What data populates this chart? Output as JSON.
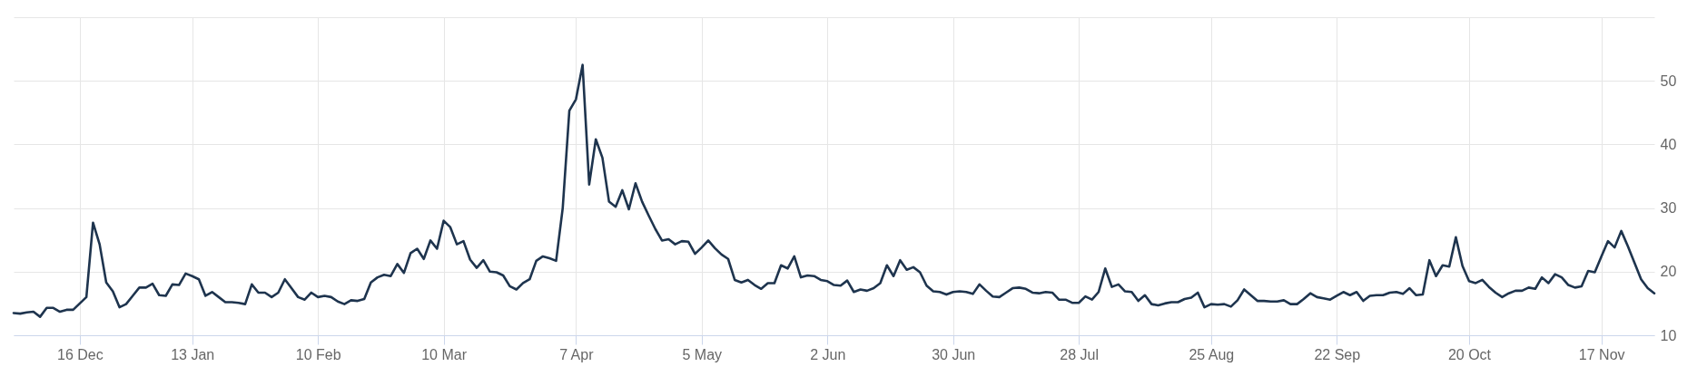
{
  "chart_data": {
    "type": "line",
    "color": "#1e344e",
    "grid": true,
    "ylim": [
      10,
      60
    ],
    "yticks": [
      10,
      20,
      30,
      40,
      50,
      {
        "value": 60,
        "label": null
      }
    ],
    "categories": [
      null,
      null,
      null,
      null,
      null,
      null,
      null,
      null,
      null,
      null,
      "16 Dec",
      null,
      null,
      null,
      null,
      null,
      null,
      null,
      null,
      null,
      null,
      null,
      null,
      null,
      null,
      null,
      null,
      "13 Jan",
      null,
      null,
      null,
      null,
      null,
      null,
      null,
      null,
      null,
      null,
      null,
      null,
      null,
      null,
      null,
      null,
      null,
      null,
      "10 Feb",
      null,
      null,
      null,
      null,
      null,
      null,
      null,
      null,
      null,
      null,
      null,
      null,
      null,
      null,
      null,
      null,
      null,
      null,
      "10 Mar",
      null,
      null,
      null,
      null,
      null,
      null,
      null,
      null,
      null,
      null,
      null,
      null,
      null,
      null,
      null,
      null,
      null,
      null,
      null,
      "7 Apr",
      null,
      null,
      null,
      null,
      null,
      null,
      null,
      null,
      null,
      null,
      null,
      null,
      null,
      null,
      null,
      null,
      null,
      null,
      "5 May",
      null,
      null,
      null,
      null,
      null,
      null,
      null,
      null,
      null,
      null,
      null,
      null,
      null,
      null,
      null,
      null,
      null,
      null,
      "2 Jun",
      null,
      null,
      null,
      null,
      null,
      null,
      null,
      null,
      null,
      null,
      null,
      null,
      null,
      null,
      null,
      null,
      null,
      null,
      "30 Jun",
      null,
      null,
      null,
      null,
      null,
      null,
      null,
      null,
      null,
      null,
      null,
      null,
      null,
      null,
      null,
      null,
      null,
      null,
      "28 Jul",
      null,
      null,
      null,
      null,
      null,
      null,
      null,
      null,
      null,
      null,
      null,
      null,
      null,
      null,
      null,
      null,
      null,
      null,
      null,
      "25 Aug",
      null,
      null,
      null,
      null,
      null,
      null,
      null,
      null,
      null,
      null,
      null,
      null,
      null,
      null,
      null,
      null,
      null,
      null,
      "22 Sep",
      null,
      null,
      null,
      null,
      null,
      null,
      null,
      null,
      null,
      null,
      null,
      null,
      null,
      null,
      null,
      null,
      null,
      null,
      null,
      "20 Oct",
      null,
      null,
      null,
      null,
      null,
      null,
      null,
      null,
      null,
      null,
      null,
      null,
      null,
      null,
      null,
      null,
      null,
      null,
      null,
      "17 Nov",
      null,
      null,
      null,
      null,
      null,
      null,
      null,
      null
    ],
    "values": [
      13.5,
      13.4,
      13.6,
      13.7,
      12.9,
      14.3,
      14.3,
      13.7,
      14.0,
      14.0,
      15.0,
      16.0,
      27.7,
      24.3,
      18.3,
      16.9,
      14.4,
      14.9,
      16.2,
      17.5,
      17.5,
      18.1,
      16.3,
      16.2,
      18.0,
      17.9,
      19.7,
      19.3,
      18.8,
      16.2,
      16.8,
      16.0,
      15.2,
      15.2,
      15.1,
      14.9,
      18.0,
      16.7,
      16.7,
      16.0,
      16.7,
      18.8,
      17.4,
      16.0,
      15.6,
      16.7,
      16.0,
      16.2,
      16.0,
      15.3,
      14.9,
      15.5,
      15.4,
      15.7,
      18.3,
      19.1,
      19.5,
      19.3,
      21.2,
      19.8,
      22.9,
      23.6,
      22.0,
      24.9,
      23.6,
      28.0,
      27.0,
      24.3,
      24.8,
      21.9,
      20.6,
      21.8,
      20.0,
      19.9,
      19.4,
      17.7,
      17.2,
      18.2,
      18.8,
      21.7,
      22.4,
      22.1,
      21.7,
      30.0,
      45.3,
      47.1,
      52.5,
      33.7,
      40.8,
      37.9,
      31.0,
      30.2,
      32.8,
      29.8,
      33.9,
      31.0,
      28.8,
      26.7,
      24.9,
      25.1,
      24.3,
      24.8,
      24.7,
      22.8,
      23.8,
      24.9,
      23.7,
      22.7,
      22.0,
      18.7,
      18.3,
      18.7,
      17.9,
      17.3,
      18.2,
      18.2,
      21.0,
      20.5,
      22.4,
      19.1,
      19.4,
      19.3,
      18.7,
      18.5,
      17.9,
      17.8,
      18.6,
      16.8,
      17.2,
      17.0,
      17.4,
      18.2,
      21.0,
      19.3,
      21.8,
      20.3,
      20.7,
      19.9,
      17.8,
      16.9,
      16.8,
      16.4,
      16.8,
      16.9,
      16.8,
      16.5,
      18.0,
      17.0,
      16.1,
      16.0,
      16.7,
      17.4,
      17.5,
      17.3,
      16.7,
      16.6,
      16.8,
      16.7,
      15.6,
      15.6,
      15.1,
      15.1,
      16.1,
      15.6,
      16.8,
      20.5,
      17.6,
      18.0,
      16.9,
      16.8,
      15.4,
      16.3,
      14.9,
      14.7,
      15.0,
      15.2,
      15.2,
      15.7,
      15.9,
      16.7,
      14.4,
      14.9,
      14.8,
      14.9,
      14.5,
      15.5,
      17.2,
      16.3,
      15.4,
      15.4,
      15.3,
      15.3,
      15.5,
      14.9,
      14.9,
      15.7,
      16.6,
      16.0,
      15.8,
      15.6,
      16.2,
      16.8,
      16.3,
      16.8,
      15.4,
      16.2,
      16.3,
      16.3,
      16.7,
      16.8,
      16.5,
      17.4,
      16.3,
      16.4,
      21.8,
      19.3,
      21.0,
      20.8,
      25.4,
      20.9,
      18.5,
      18.2,
      18.7,
      17.6,
      16.7,
      16.0,
      16.6,
      17.0,
      17.0,
      17.5,
      17.3,
      19.1,
      18.2,
      19.6,
      19.1,
      17.9,
      17.5,
      17.7,
      20.1,
      19.9,
      22.4,
      24.8,
      23.8,
      26.4,
      24.0,
      21.4,
      18.8,
      17.4,
      16.6
    ]
  }
}
